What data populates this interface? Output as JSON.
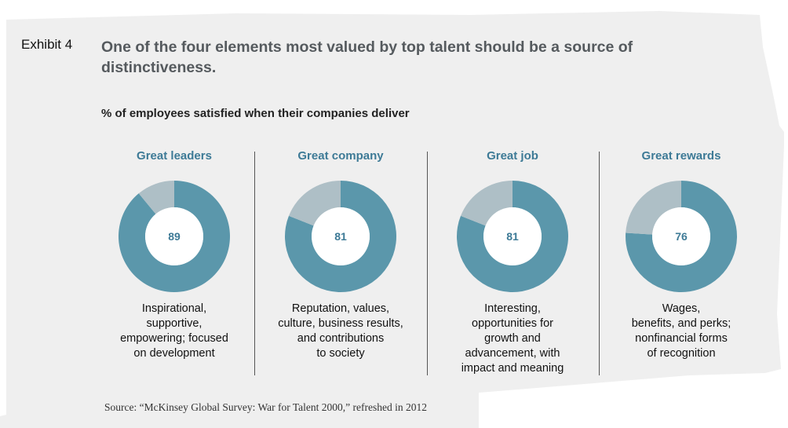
{
  "header": {
    "exhibit_label": "Exhibit 4",
    "title": "One of the four elements most valued by top talent should be a source of distinctiveness."
  },
  "chart_data": {
    "type": "pie",
    "variant": "donut",
    "subtitle": "% of employees satisfied when their companies deliver",
    "unit": "%",
    "colors": {
      "satisfied": "#5b97ab",
      "remainder": "#aebfc6",
      "title": "#3d7a96"
    },
    "panels": [
      {
        "title": "Great leaders",
        "value": 89,
        "description": "Inspirational,\nsupportive,\nempowering; focused\non development"
      },
      {
        "title": "Great company",
        "value": 81,
        "description": "Reputation, values,\nculture, business results,\nand contributions\nto society"
      },
      {
        "title": "Great job",
        "value": 81,
        "description": "Interesting,\nopportunities for\ngrowth and\nadvancement, with\nimpact and meaning"
      },
      {
        "title": "Great rewards",
        "value": 76,
        "description": "Wages,\nbenefits, and perks;\nnonfinancial forms\nof recognition"
      }
    ]
  },
  "footer": {
    "source": "Source: “McKinsey Global Survey: War for Talent 2000,” refreshed in 2012"
  }
}
